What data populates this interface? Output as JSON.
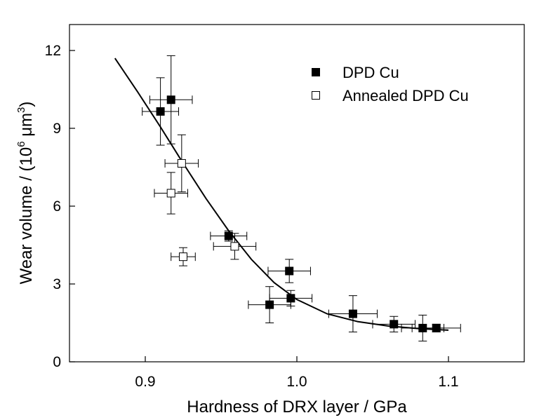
{
  "chart_data": {
    "type": "scatter",
    "xlabel": "Hardness of DRX layer / GPa",
    "ylabel": {
      "prefix": "Wear volume / (10",
      "sup1": "6",
      "mid": " μm",
      "sup2": "3",
      "suffix": ")"
    },
    "xlim": [
      0.85,
      1.15
    ],
    "ylim": [
      0,
      13
    ],
    "xticks": [
      0.9,
      1.0,
      1.1
    ],
    "xtick_labels": [
      "0.9",
      "1.0",
      "1.1"
    ],
    "yticks": [
      0,
      3,
      6,
      9,
      12
    ],
    "ytick_labels": [
      "0",
      "3",
      "6",
      "9",
      "12"
    ],
    "grid": false,
    "legend_position": "top-right",
    "series": [
      {
        "name": "DPD Cu",
        "marker": "filled-square",
        "points": [
          {
            "x": 0.91,
            "y": 9.65,
            "xerr": 0.012,
            "yerr": 1.3
          },
          {
            "x": 0.917,
            "y": 10.1,
            "xerr": 0.014,
            "yerr": 1.7
          },
          {
            "x": 0.955,
            "y": 4.85,
            "xerr": 0.012,
            "yerr": 0.2
          },
          {
            "x": 0.982,
            "y": 2.2,
            "xerr": 0.014,
            "yerr": 0.7
          },
          {
            "x": 0.995,
            "y": 3.5,
            "xerr": 0.014,
            "yerr": 0.45
          },
          {
            "x": 0.996,
            "y": 2.45,
            "xerr": 0.014,
            "yerr": 0.3
          },
          {
            "x": 1.037,
            "y": 1.85,
            "xerr": 0.016,
            "yerr": 0.7
          },
          {
            "x": 1.064,
            "y": 1.45,
            "xerr": 0.014,
            "yerr": 0.3
          },
          {
            "x": 1.083,
            "y": 1.3,
            "xerr": 0.014,
            "yerr": 0.5
          },
          {
            "x": 1.092,
            "y": 1.3,
            "xerr": 0.016,
            "yerr": 0.15
          }
        ]
      },
      {
        "name": "Annealed DPD Cu",
        "marker": "open-square",
        "points": [
          {
            "x": 0.924,
            "y": 7.65,
            "xerr": 0.011,
            "yerr": 1.1
          },
          {
            "x": 0.917,
            "y": 6.5,
            "xerr": 0.011,
            "yerr": 0.8
          },
          {
            "x": 0.925,
            "y": 4.05,
            "xerr": 0.008,
            "yerr": 0.35
          },
          {
            "x": 0.959,
            "y": 4.45,
            "xerr": 0.014,
            "yerr": 0.5
          }
        ]
      }
    ],
    "fit_curve": {
      "x": [
        0.88,
        0.895,
        0.91,
        0.925,
        0.94,
        0.955,
        0.97,
        0.985,
        1.0,
        1.02,
        1.04,
        1.06,
        1.08,
        1.1
      ],
      "y": [
        11.7,
        10.4,
        9.05,
        7.65,
        6.3,
        5.05,
        3.95,
        3.05,
        2.4,
        1.85,
        1.55,
        1.38,
        1.28,
        1.22
      ]
    }
  }
}
